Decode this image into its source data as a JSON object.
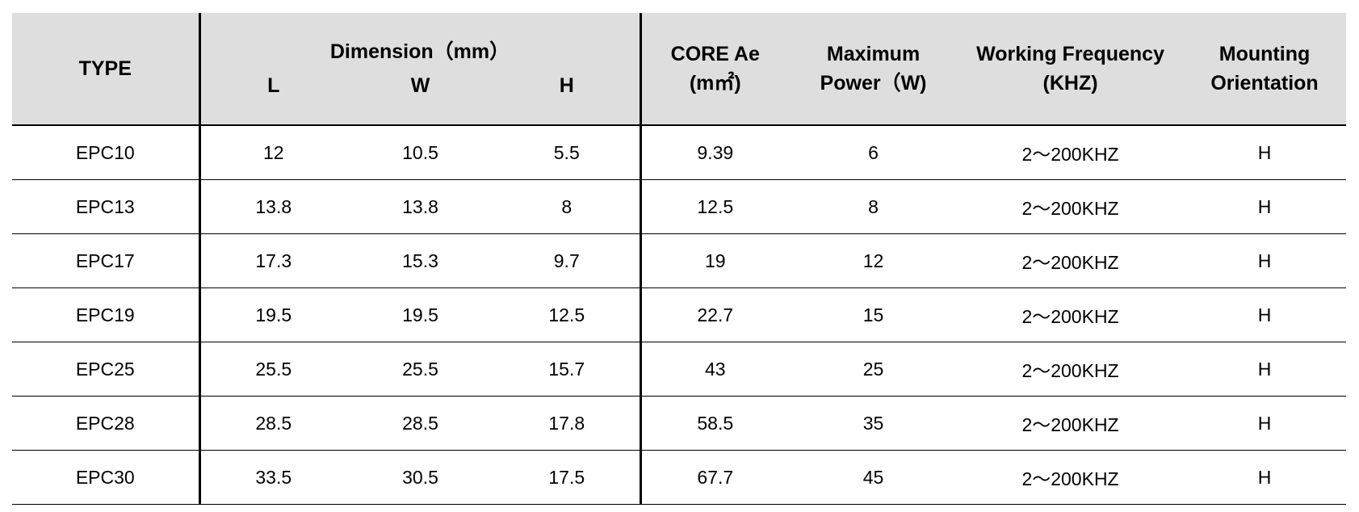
{
  "table": {
    "header": {
      "type": "TYPE",
      "dimension": "Dimension（mm）",
      "dims": [
        "L",
        "W",
        "H"
      ],
      "core": "CORE Ae\n(m㎡)",
      "power": "Maximum\nPower（W)",
      "frequency": "Working Frequency\n(KHZ)",
      "mounting": "Mounting\nOrientation"
    },
    "rows": [
      [
        "EPC10",
        "12",
        "10.5",
        "5.5",
        "9.39",
        "6",
        "2～200KHZ",
        "H"
      ],
      [
        "EPC13",
        "13.8",
        "13.8",
        "8",
        "12.5",
        "8",
        "2～200KHZ",
        "H"
      ],
      [
        "EPC17",
        "17.3",
        "15.3",
        "9.7",
        "19",
        "12",
        "2～200KHZ",
        "H"
      ],
      [
        "EPC19",
        "19.5",
        "19.5",
        "12.5",
        "22.7",
        "15",
        "2～200KHZ",
        "H"
      ],
      [
        "EPC25",
        "25.5",
        "25.5",
        "15.7",
        "43",
        "25",
        "2～200KHZ",
        "H"
      ],
      [
        "EPC28",
        "28.5",
        "28.5",
        "17.8",
        "58.5",
        "35",
        "2～200KHZ",
        "H"
      ],
      [
        "EPC30",
        "33.5",
        "30.5",
        "17.5",
        "67.7",
        "45",
        "2～200KHZ",
        "H"
      ]
    ]
  }
}
